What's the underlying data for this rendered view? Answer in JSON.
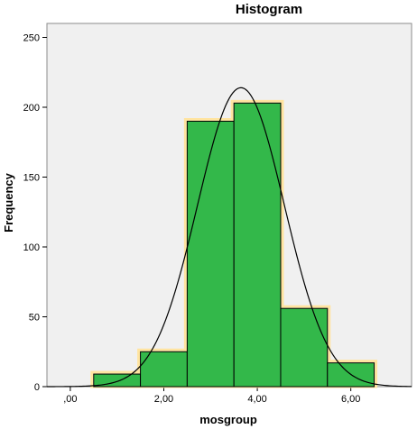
{
  "chart_data": {
    "type": "bar",
    "title": "Histogram",
    "xlabel": "mosgroup",
    "ylabel": "Frequency",
    "bins": [
      {
        "from": 0.5,
        "to": 1.5,
        "value": 9
      },
      {
        "from": 1.5,
        "to": 2.5,
        "value": 25
      },
      {
        "from": 2.5,
        "to": 3.5,
        "value": 190
      },
      {
        "from": 3.5,
        "to": 4.5,
        "value": 203
      },
      {
        "from": 4.5,
        "to": 5.5,
        "value": 56
      },
      {
        "from": 5.5,
        "to": 6.5,
        "value": 17
      }
    ],
    "normal_curve": {
      "mean": 3.65,
      "sd": 0.93,
      "peak": 214
    },
    "xlim": [
      -0.5,
      7.3
    ],
    "ylim": [
      0,
      260
    ],
    "x_ticks": [
      0,
      2,
      4,
      6
    ],
    "x_tick_labels": [
      ",00",
      "2,00",
      "4,00",
      "6,00"
    ],
    "y_ticks": [
      0,
      50,
      100,
      150,
      200,
      250
    ],
    "y_tick_labels": [
      "0",
      "50",
      "100",
      "150",
      "200",
      "250"
    ],
    "grid": false,
    "colors": {
      "bar_fill": "#33b84a",
      "bar_stroke": "#000000",
      "bar_highlight": "#ffe4a0",
      "plot_background": "#f0f0f0",
      "curve": "#000000"
    }
  }
}
